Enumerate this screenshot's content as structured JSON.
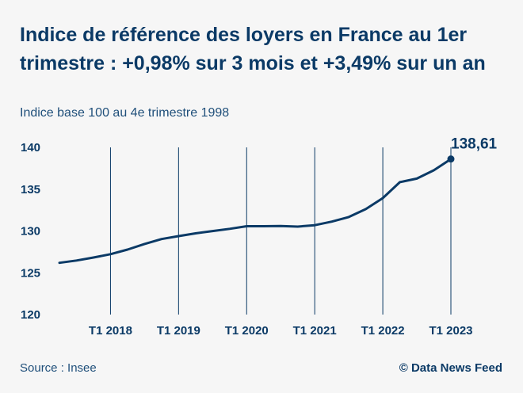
{
  "header": {
    "title": "Indice de référence des loyers en France au 1er trimestre : +0,98% sur 3 mois et +3,49% sur un an",
    "subtitle": "Indice base 100 au 4e trimestre 1998"
  },
  "footer": {
    "source": "Source : Insee",
    "credit": "© Data News Feed"
  },
  "chart_data": {
    "type": "line",
    "title": "Indice de référence des loyers en France au 1er trimestre : +0,98% sur 3 mois et +3,49% sur un an",
    "subtitle": "Indice base 100 au 4e trimestre 1998",
    "ylim": [
      120,
      140
    ],
    "y_ticks": [
      120,
      125,
      130,
      135,
      140
    ],
    "x_ticks": [
      "T1 2018",
      "T1 2019",
      "T1 2020",
      "T1 2021",
      "T1 2022",
      "T1 2023"
    ],
    "x": [
      "T2 2017",
      "T3 2017",
      "T4 2017",
      "T1 2018",
      "T2 2018",
      "T3 2018",
      "T4 2018",
      "T1 2019",
      "T2 2019",
      "T3 2019",
      "T4 2019",
      "T1 2020",
      "T2 2020",
      "T3 2020",
      "T4 2020",
      "T1 2021",
      "T2 2021",
      "T3 2021",
      "T4 2021",
      "T1 2022",
      "T2 2022",
      "T3 2022",
      "T4 2022",
      "T1 2023"
    ],
    "series": [
      {
        "values": [
          126.19,
          126.46,
          126.82,
          127.22,
          127.77,
          128.45,
          129.03,
          129.38,
          129.72,
          129.99,
          130.26,
          130.57,
          130.57,
          130.59,
          130.52,
          130.69,
          131.12,
          131.67,
          132.62,
          133.93,
          135.84,
          136.27,
          137.26,
          138.61
        ],
        "color": "#0b3a66"
      }
    ],
    "annotations": [
      {
        "x": "T1 2023",
        "value": 138.61,
        "label": "138,61"
      }
    ],
    "grid": "vertical lines at x ticks"
  }
}
